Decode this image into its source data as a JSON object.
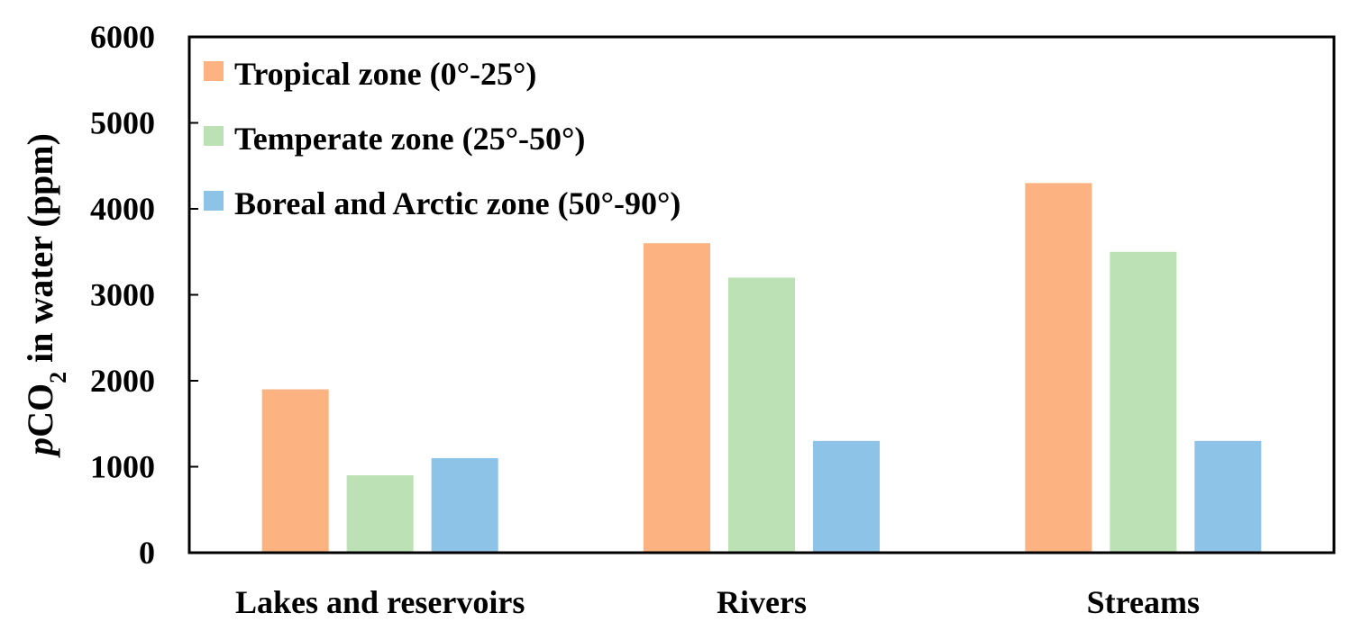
{
  "chart_data": {
    "type": "bar",
    "categories": [
      "Lakes and reservoirs",
      "Rivers",
      "Streams"
    ],
    "series": [
      {
        "name": "Tropical zone (0°-25°)",
        "color": "#FDB381",
        "values": [
          1900,
          3600,
          4300
        ]
      },
      {
        "name": "Temperate zone (25°-50°)",
        "color": "#BBE1B4",
        "values": [
          900,
          3200,
          3500
        ]
      },
      {
        "name": "Boreal and Arctic zone (50°-90°)",
        "color": "#8DC3E6",
        "values": [
          1100,
          1300,
          1300
        ]
      }
    ],
    "ylabel": {
      "italic_prefix": "p",
      "main": "CO",
      "subscript": "2",
      "suffix": " in water (ppm)"
    },
    "ylim": [
      0,
      6000
    ],
    "yticks": [
      "0",
      "1000",
      "2000",
      "3000",
      "4000",
      "5000",
      "6000"
    ],
    "ytick_values": [
      0,
      1000,
      2000,
      3000,
      4000,
      5000,
      6000
    ],
    "grid": false,
    "legend_position": "top-left"
  }
}
